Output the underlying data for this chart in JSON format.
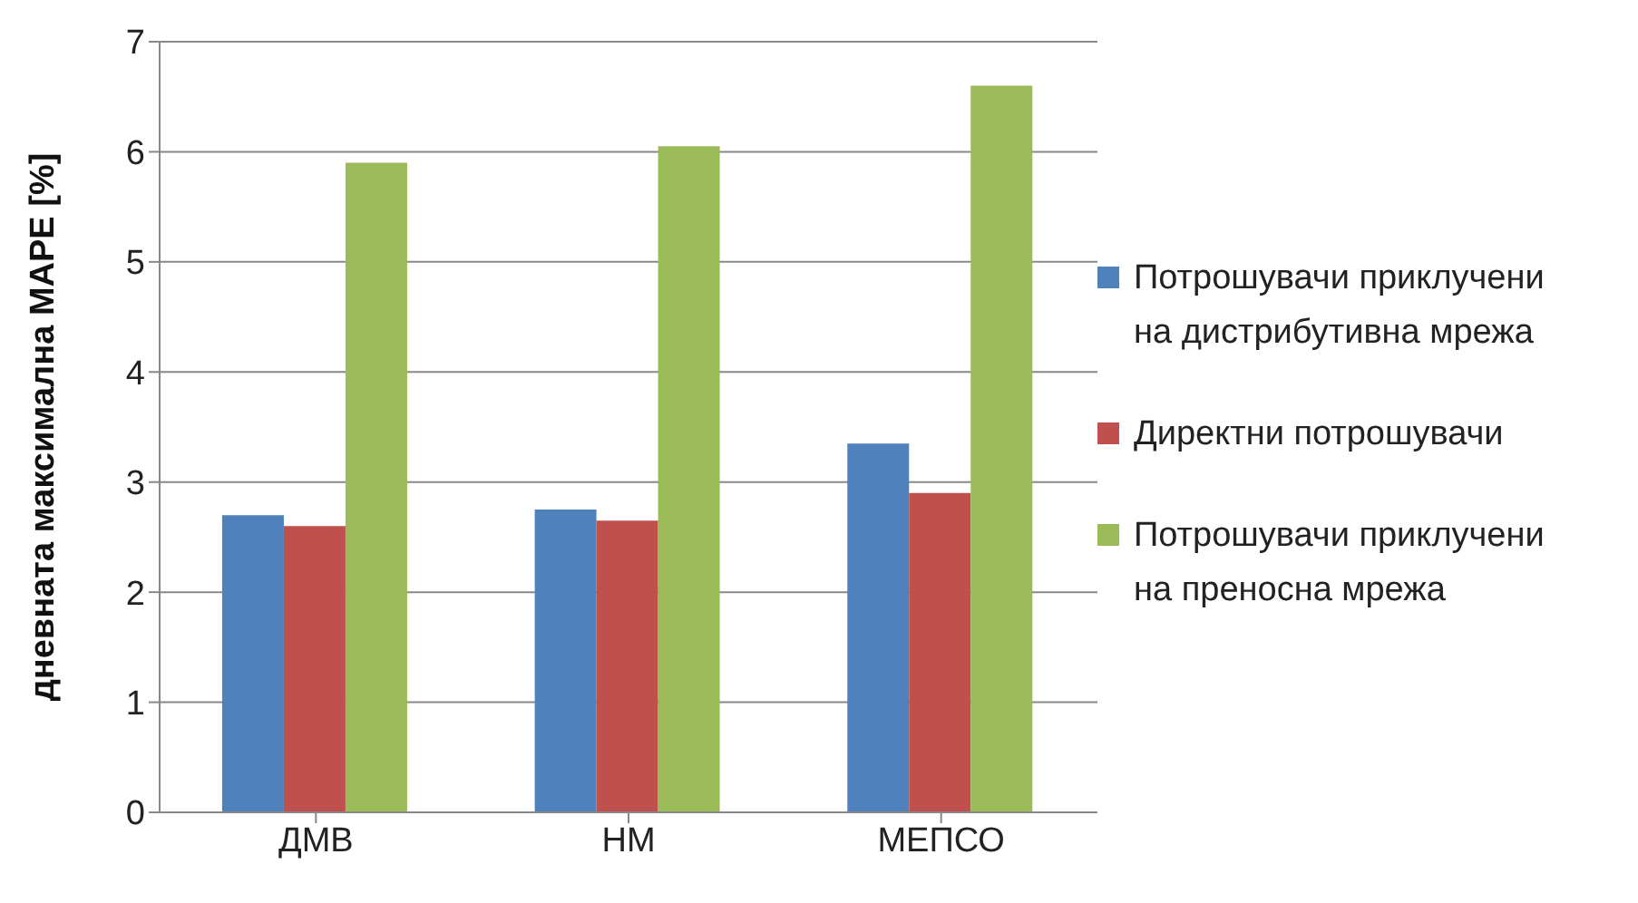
{
  "chart_data": {
    "type": "bar",
    "ylabel": "дневната максимална MAPE [%]",
    "categories": [
      "ДМВ",
      "НМ",
      "МЕПСО"
    ],
    "series": [
      {
        "name": "Потрошувачи приклучени на дистрибутивна мрежа",
        "color": "#4f81bd",
        "values": [
          2.7,
          2.75,
          3.35
        ]
      },
      {
        "name": "Директни потрошувачи",
        "color": "#c0504d",
        "values": [
          2.6,
          2.65,
          2.9
        ]
      },
      {
        "name": "Потрошувачи приклучени на преносна мрежа",
        "color": "#9bbb59",
        "values": [
          5.9,
          6.05,
          6.6
        ]
      }
    ],
    "ylim": [
      0,
      7
    ],
    "yticks": [
      0,
      1,
      2,
      3,
      4,
      5,
      6,
      7
    ],
    "grid": "y",
    "legend": "right"
  }
}
